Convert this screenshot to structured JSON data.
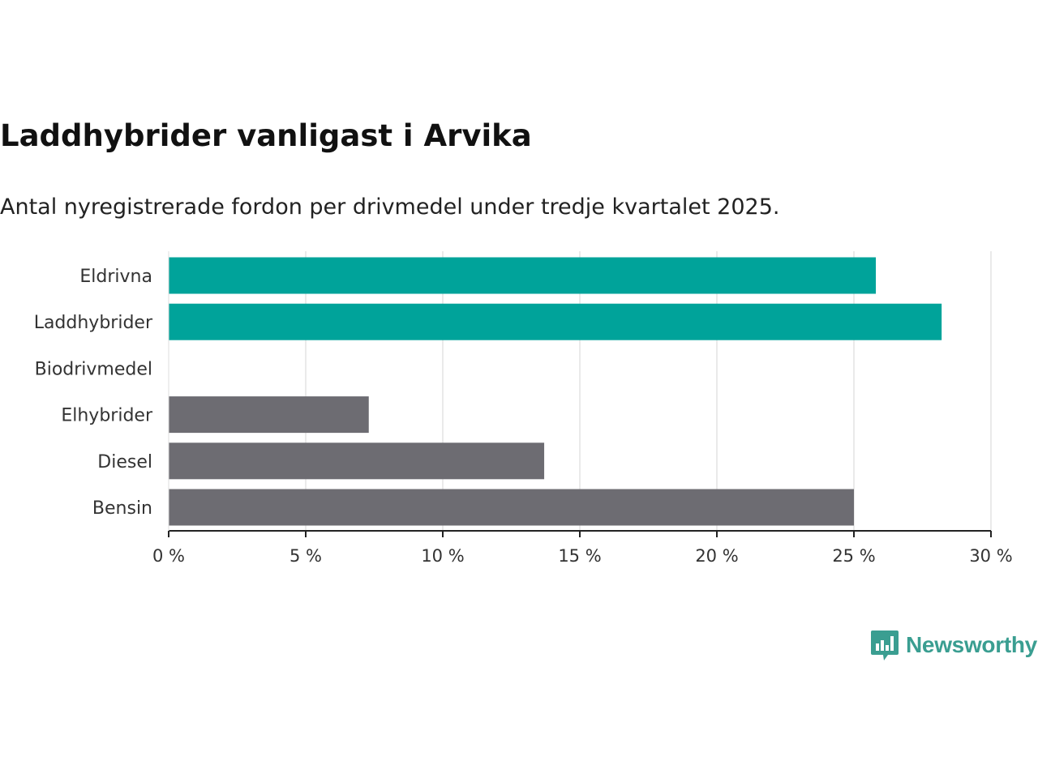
{
  "chart_data": {
    "type": "bar",
    "orientation": "horizontal",
    "title": "Laddhybrider vanligast i Arvika",
    "subtitle": "Antal nyregistrerade fordon per drivmedel under tredje kvartalet 2025.",
    "categories": [
      "Eldrivna",
      "Laddhybrider",
      "Biodrivmedel",
      "Elhybrider",
      "Diesel",
      "Bensin"
    ],
    "values": [
      25.8,
      28.2,
      0,
      7.3,
      13.7,
      25.0
    ],
    "colors": [
      "#00a39a",
      "#00a39a",
      "#6d6c72",
      "#6d6c72",
      "#6d6c72",
      "#6d6c72"
    ],
    "xlim": [
      0,
      30
    ],
    "xticks": [
      0,
      5,
      10,
      15,
      20,
      25,
      30
    ],
    "xtick_labels": [
      "0 %",
      "5 %",
      "10 %",
      "15 %",
      "20 %",
      "25 %",
      "30 %"
    ],
    "xlabel": "",
    "ylabel": "",
    "grid": true
  },
  "brand": {
    "name": "Newsworthy",
    "color": "#3a9e91"
  }
}
